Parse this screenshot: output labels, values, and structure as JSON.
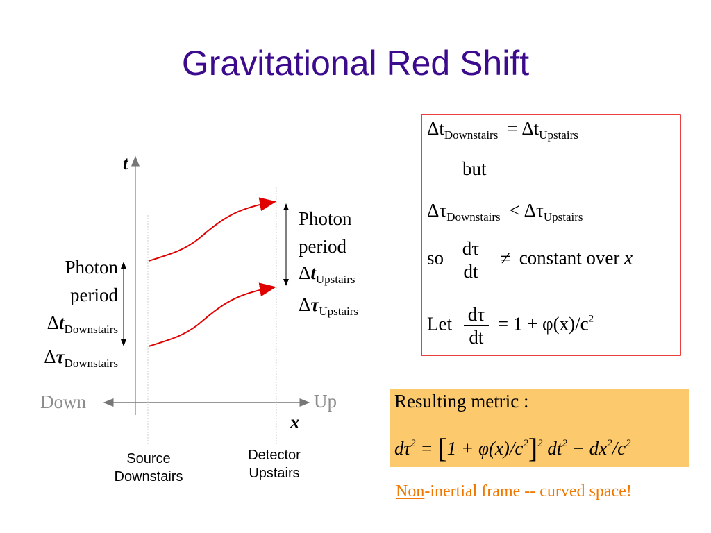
{
  "title": "Gravitational Red Shift",
  "diagram": {
    "t_label": "t",
    "x_label": "x",
    "down": "Down",
    "up": "Up",
    "left_label": {
      "line1": "Photon",
      "line2": "period",
      "dt": "Δ",
      "dt_var": "t",
      "dt_sub": "Downstairs",
      "dtau": "Δ",
      "dtau_var": "τ",
      "dtau_sub": "Downstairs"
    },
    "right_label": {
      "line1": "Photon",
      "line2": "period",
      "dt": "Δ",
      "dt_var": "t",
      "dt_sub": "Upstairs",
      "dtau": "Δ",
      "dtau_var": "τ",
      "dtau_sub": "Upstairs"
    },
    "source": [
      "Source",
      "Downstairs"
    ],
    "detector": [
      "Detector",
      "Upstairs"
    ]
  },
  "equations": {
    "line1": [
      "Δt",
      "Downstairs",
      "=",
      "Δt",
      "Upstairs"
    ],
    "line2": "but",
    "line3": [
      "Δτ",
      "Downstairs",
      "<",
      "Δτ",
      "Upstairs"
    ],
    "line4": {
      "so": "so",
      "num": "dτ",
      "den": "dt",
      "neq": "≠",
      "rest": "constant over",
      "x": "x"
    },
    "line5": {
      "let": "Let",
      "num": "dτ",
      "den": "dt",
      "rest": "= 1 + φ(x)/c",
      "exp": "2"
    }
  },
  "metric": {
    "heading": "Resulting metric :",
    "eq": [
      "dτ",
      "2",
      " = ",
      "[",
      "1 + φ(x)/c",
      "2",
      "]",
      "2",
      " dt",
      "2",
      " − dx",
      "2",
      "/c",
      "2"
    ]
  },
  "note": {
    "underlined": "Non",
    "rest": "-inertial frame -- curved space!"
  }
}
